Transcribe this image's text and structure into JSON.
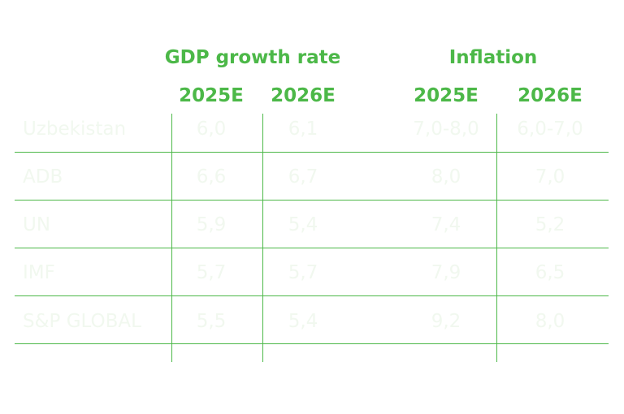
{
  "chart_data": {
    "type": "table",
    "groups": [
      {
        "name": "GDP growth rate",
        "years": [
          "2025E",
          "2026E"
        ]
      },
      {
        "name": "Inflation",
        "years": [
          "2025E",
          "2026E"
        ]
      }
    ],
    "rows": [
      {
        "label": "Uzbekistan",
        "values": [
          "6,0",
          "6,1",
          "7,0-8,0",
          "6,0-7,0"
        ]
      },
      {
        "label": "ADB",
        "values": [
          "6,6",
          "6,7",
          "8,0",
          "7,0"
        ]
      },
      {
        "label": "UN",
        "values": [
          "5,9",
          "5,4",
          "7,4",
          "5,2"
        ]
      },
      {
        "label": "IMF",
        "values": [
          "5,7",
          "5,7",
          "7,9",
          "6,5"
        ]
      },
      {
        "label": "S&P GLOBAL",
        "values": [
          "5,5",
          "5,4",
          "9,2",
          "8,0"
        ]
      }
    ],
    "colors": {
      "accent": "#4cb848",
      "cell_text": "#f1f8ef"
    }
  }
}
